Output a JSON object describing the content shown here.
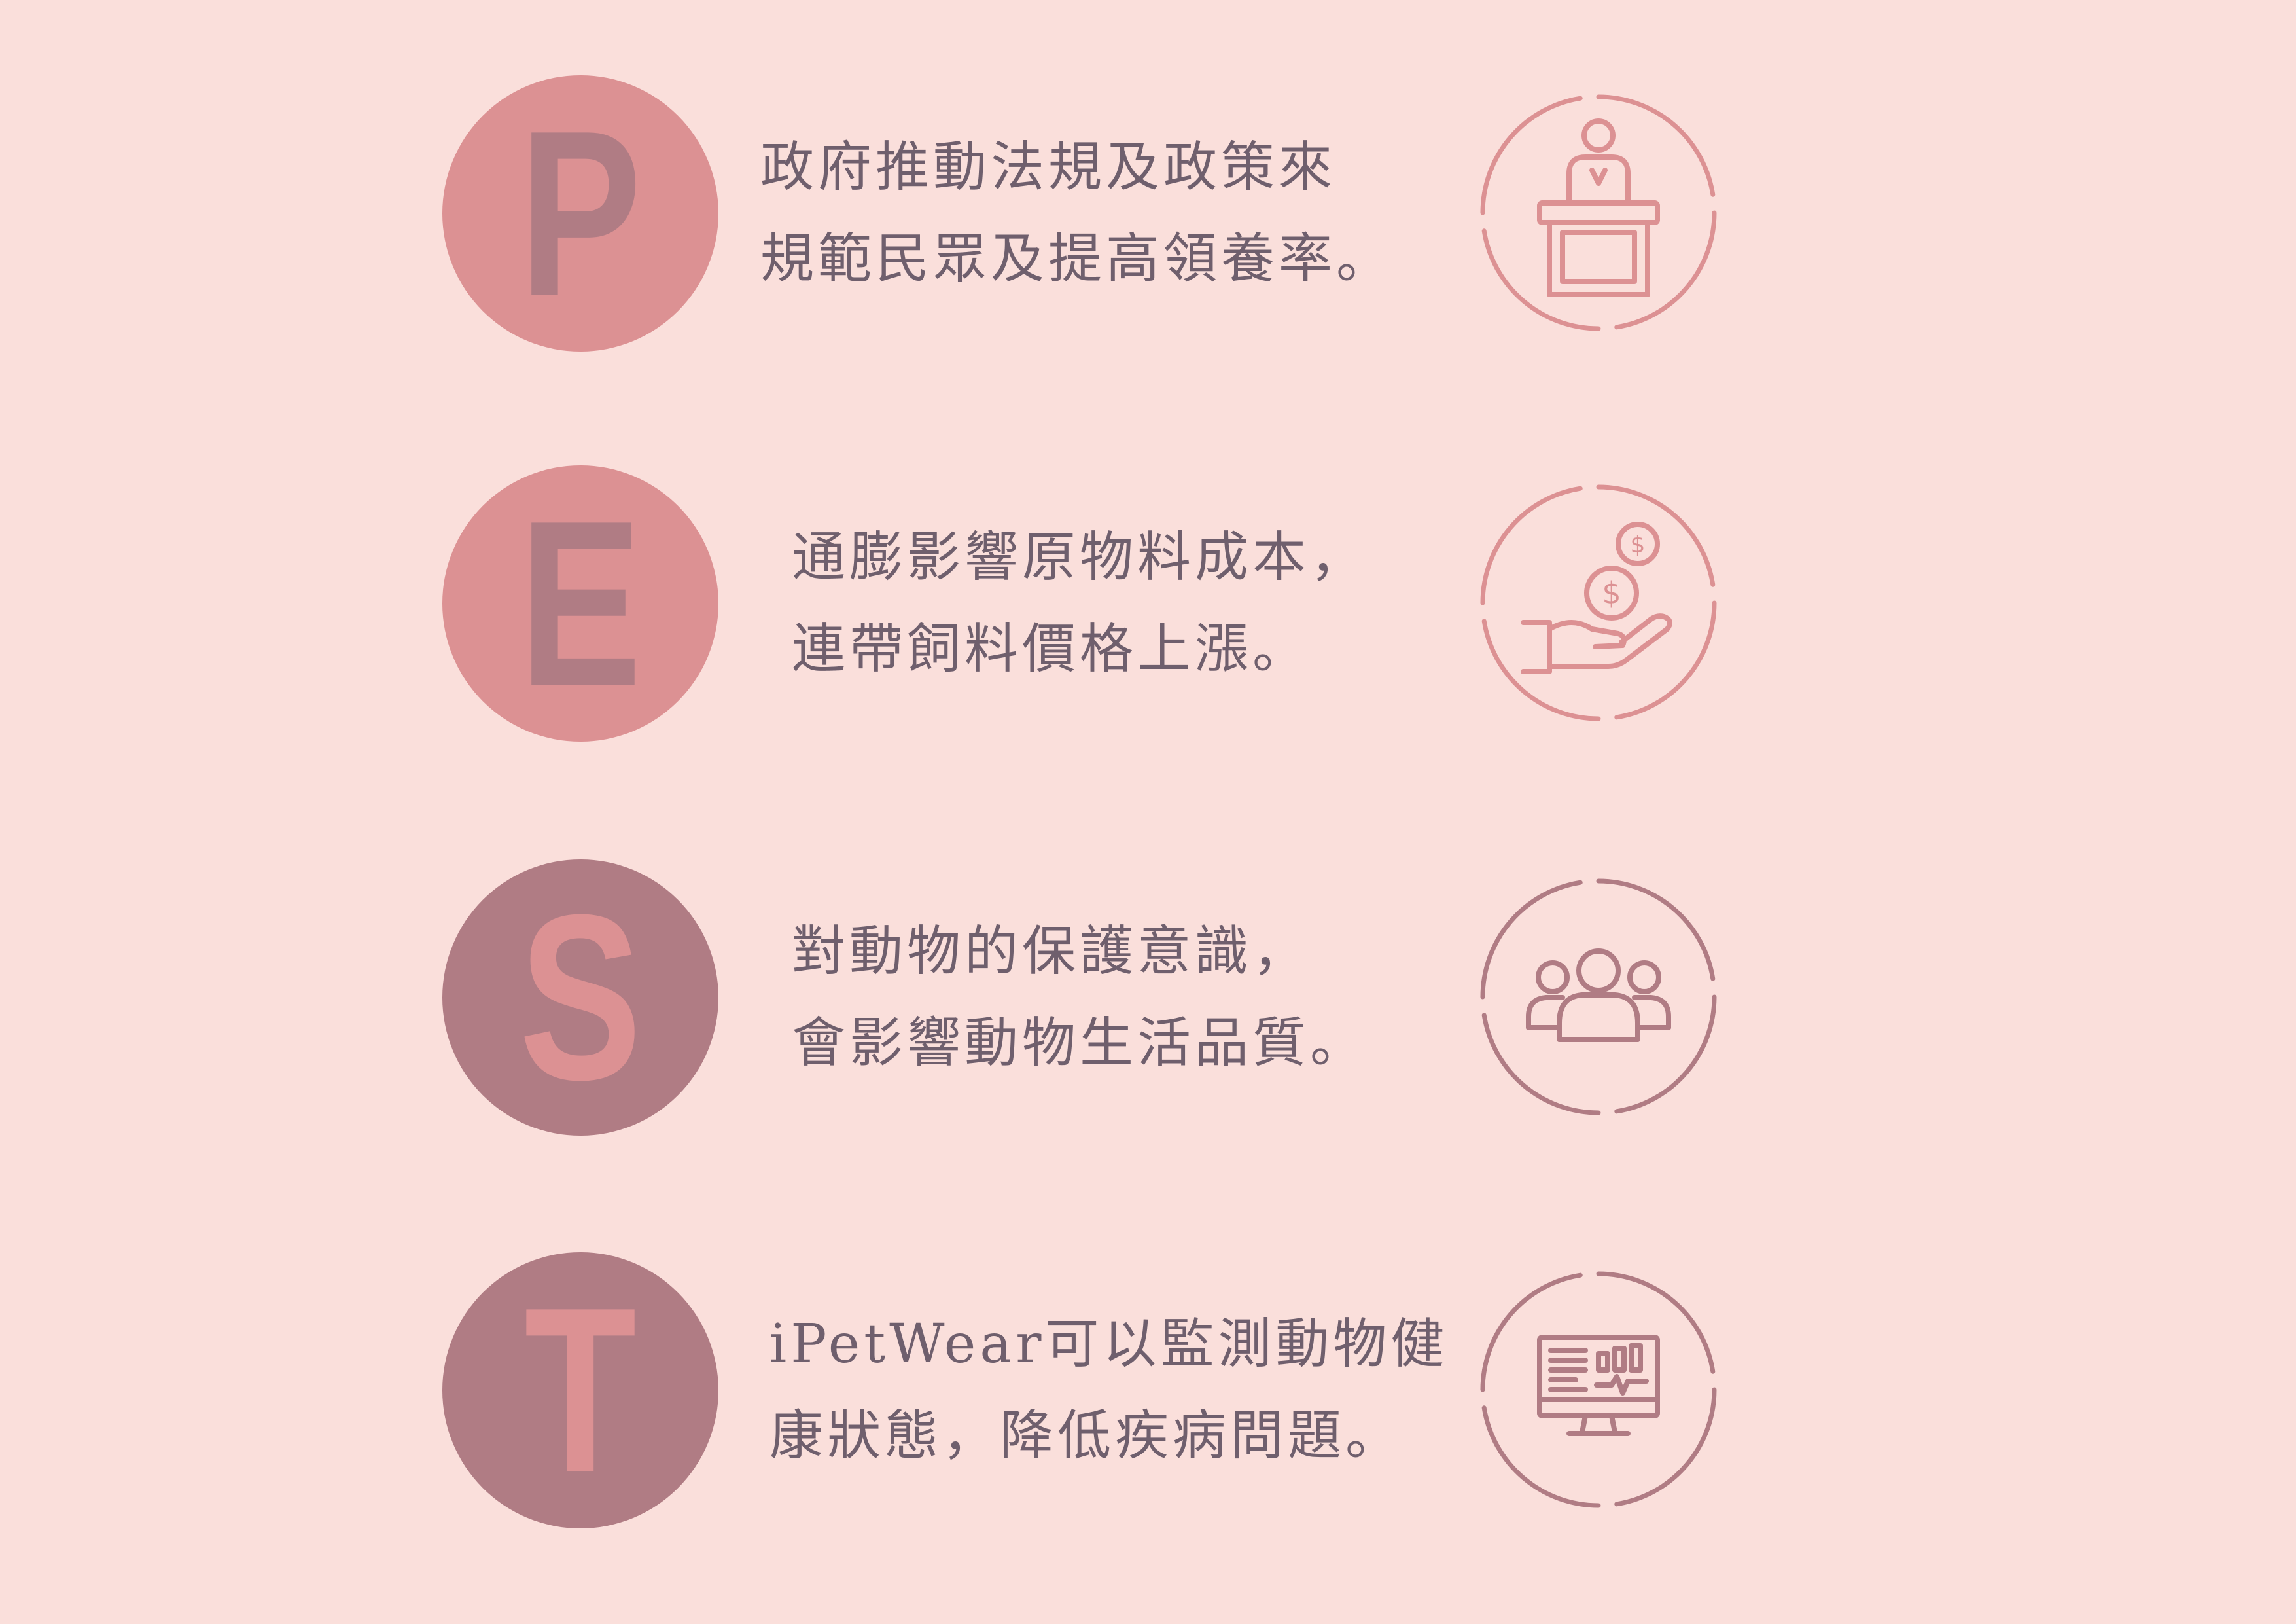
{
  "colors": {
    "background": "#fadfdb",
    "pink": "#dc9193",
    "mauve": "#b07c84",
    "text": "#6f5f6d"
  },
  "items": [
    {
      "letter": "P",
      "lines": [
        "政府推動法規及政策來",
        "規範民眾及提高領養率。"
      ],
      "icon": "podium-speaker-icon"
    },
    {
      "letter": "E",
      "lines": [
        "通膨影響原物料成本，",
        "連帶飼料價格上漲。"
      ],
      "icon": "hand-coins-icon"
    },
    {
      "letter": "S",
      "lines": [
        "對動物的保護意識，",
        "會影響動物生活品質。"
      ],
      "icon": "people-group-icon"
    },
    {
      "letter": "T",
      "lines": [
        "iPetWear可以監測動物健",
        "康狀態，降低疾病問題。"
      ],
      "icon": "monitor-chart-icon"
    }
  ]
}
